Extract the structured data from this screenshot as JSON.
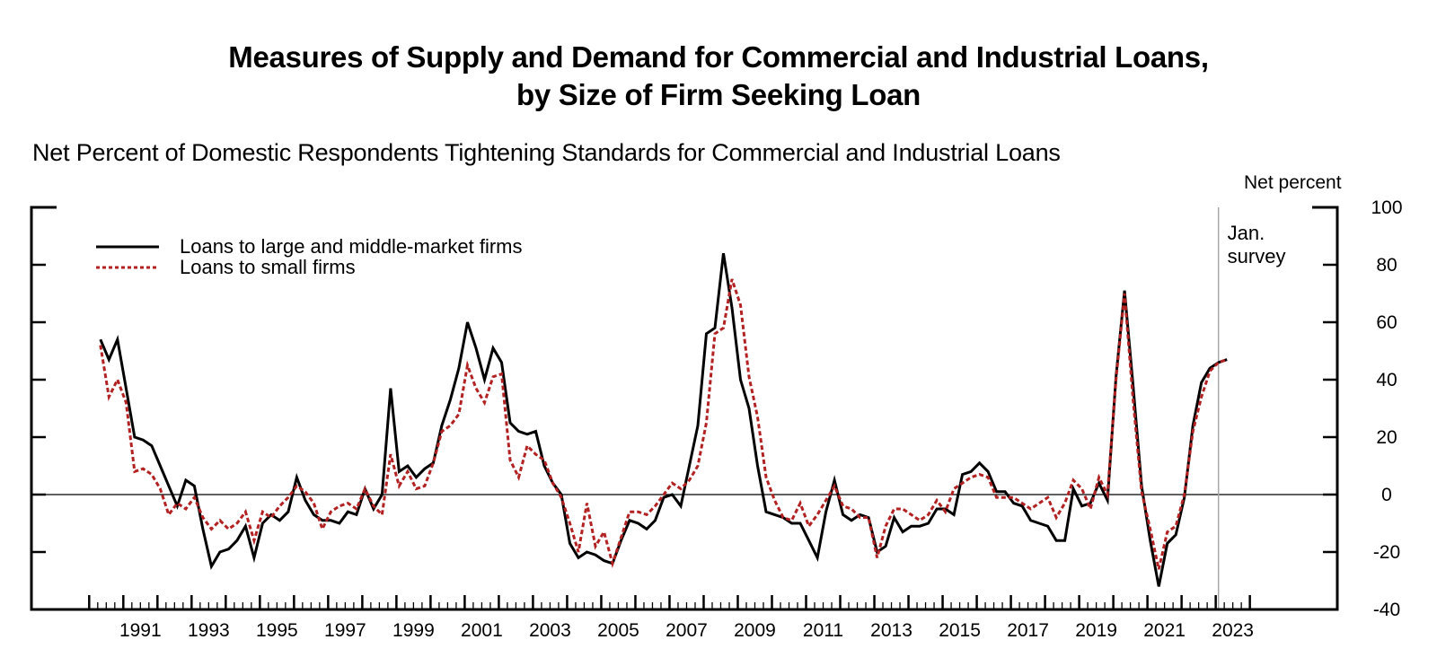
{
  "chart_data": {
    "type": "line",
    "title": "Measures of Supply and Demand for Commercial and Industrial Loans,",
    "title_line2": "by Size of Firm Seeking Loan",
    "subtitle": "Net Percent of Domestic Respondents Tightening Standards for Commercial and Industrial Loans",
    "ylabel": "Net percent",
    "xlabel": "",
    "ylim": [
      -40,
      100
    ],
    "xlim": [
      1990,
      2024
    ],
    "y_ticks": [
      100,
      80,
      60,
      40,
      20,
      0,
      -20,
      -40
    ],
    "x_tick_labels": [
      "1991",
      "1993",
      "1995",
      "1997",
      "1999",
      "2001",
      "2003",
      "2005",
      "2007",
      "2009",
      "2011",
      "2013",
      "2015",
      "2017",
      "2019",
      "2021",
      "2023"
    ],
    "x_tick_label_years": [
      1991,
      1993,
      1995,
      1997,
      1999,
      2001,
      2003,
      2005,
      2007,
      2009,
      2011,
      2013,
      2015,
      2017,
      2019,
      2021,
      2023
    ],
    "reference_line": {
      "value": 0
    },
    "annotation": {
      "text_line1": "Jan.",
      "text_line2": "survey",
      "x": 2023.08
    },
    "legend_placement": "top-left",
    "x_start": 1990.33,
    "x_step": 0.25,
    "series": [
      {
        "name": "Loans to large and middle-market firms",
        "color": "#000000",
        "style": "solid",
        "values": [
          54,
          47,
          54,
          37,
          20,
          19,
          17,
          10,
          3,
          -4,
          5,
          3,
          -12,
          -25,
          -20,
          -19,
          -16,
          -11,
          -22,
          -10,
          -7,
          -9,
          -6,
          6,
          -2,
          -7,
          -9,
          -9,
          -10,
          -6,
          -7,
          2,
          -5,
          0,
          37,
          8,
          10,
          6,
          9,
          11,
          24,
          33,
          44,
          60,
          51,
          40,
          51,
          46,
          25,
          22,
          21,
          22,
          10,
          4,
          0,
          -17,
          -22,
          -20,
          -21,
          -23,
          -24,
          -16,
          -9,
          -10,
          -12,
          -9,
          -1,
          0,
          -4,
          10,
          24,
          56,
          58,
          84,
          65,
          40,
          30,
          10,
          -6,
          -7,
          -8,
          -10,
          -10,
          -16,
          -22,
          -6,
          5,
          -7,
          -9,
          -7,
          -8,
          -20,
          -18,
          -8,
          -13,
          -11,
          -11,
          -10,
          -5,
          -5,
          -7,
          7,
          8,
          11,
          8,
          1,
          1,
          -3,
          -4,
          -9,
          -10,
          -11,
          -16,
          -16,
          2,
          -4,
          -3,
          4,
          -2,
          41,
          71,
          38,
          3,
          -16,
          -32,
          -17,
          -14,
          -1,
          24,
          39,
          44,
          46,
          47
        ]
      },
      {
        "name": "Loans to small firms",
        "color": "#b22222",
        "style": "dashed",
        "values": [
          52,
          34,
          40,
          32,
          8,
          9,
          7,
          2,
          -7,
          -3,
          -5,
          -1,
          -8,
          -12,
          -9,
          -12,
          -10,
          -6,
          -16,
          -6,
          -8,
          -4,
          -1,
          3,
          1,
          -3,
          -12,
          -6,
          -4,
          -3,
          -5,
          2,
          -4,
          -7,
          14,
          3,
          8,
          2,
          3,
          11,
          22,
          24,
          28,
          45,
          37,
          32,
          41,
          42,
          12,
          6,
          17,
          14,
          12,
          4,
          -1,
          -10,
          -20,
          -3,
          -18,
          -13,
          -24,
          -15,
          -6,
          -6,
          -7,
          -4,
          0,
          4,
          2,
          5,
          10,
          25,
          56,
          58,
          75,
          66,
          41,
          27,
          6,
          -2,
          -8,
          -9,
          -3,
          -11,
          -7,
          -2,
          3,
          -4,
          -5,
          -8,
          -8,
          -22,
          -11,
          -5,
          -5,
          -7,
          -9,
          -7,
          -2,
          -6,
          2,
          4,
          6,
          7,
          6,
          -1,
          -1,
          -1,
          -3,
          -5,
          -3,
          -1,
          -8,
          -3,
          5,
          2,
          -5,
          6,
          0,
          40,
          70,
          33,
          1,
          -12,
          -26,
          -13,
          -11,
          0,
          22,
          34,
          43,
          46,
          47
        ]
      }
    ]
  }
}
